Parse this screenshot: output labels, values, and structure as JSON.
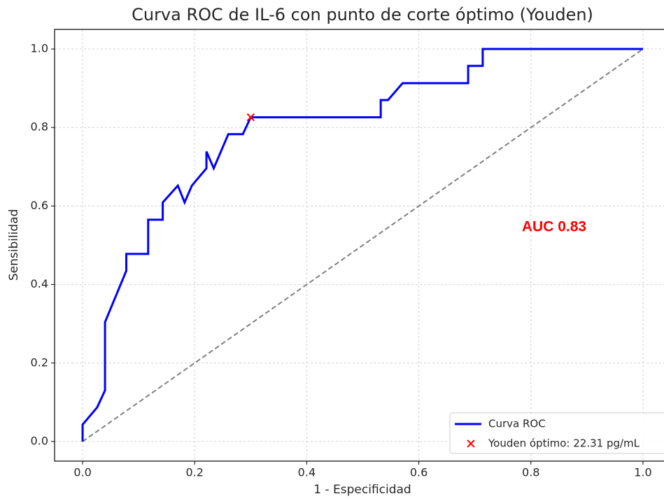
{
  "chart_data": {
    "type": "line",
    "title": "Curva ROC de IL-6 con punto de corte óptimo (Youden)",
    "x_label": "1 - Especificidad",
    "y_label": "Sensibilidad",
    "annotation": "AUC 0.83",
    "xlim": [
      -0.05,
      1.05
    ],
    "ylim": [
      -0.05,
      1.05
    ],
    "xticks": [
      {
        "value": 0,
        "label": "0.0"
      },
      {
        "value": 0.2,
        "label": "0.2"
      },
      {
        "value": 0.4,
        "label": "0.4"
      },
      {
        "value": 0.6,
        "label": "0.6"
      },
      {
        "value": 0.8,
        "label": "0.8"
      },
      {
        "value": 1,
        "label": "1.0"
      }
    ],
    "yticks": [
      {
        "value": 0,
        "label": "0.0"
      },
      {
        "value": 0.2,
        "label": "0.2"
      },
      {
        "value": 0.4,
        "label": "0.4"
      },
      {
        "value": 0.6,
        "label": "0.6"
      },
      {
        "value": 0.8,
        "label": "0.8"
      },
      {
        "value": 1,
        "label": "1.0"
      }
    ],
    "grid": true,
    "legend": "lower right",
    "series": [
      {
        "name": "Curva ROC",
        "color": "#0000ff",
        "style": "solid",
        "x": [
          0,
          0,
          0.026,
          0.04,
          0.04,
          0.078,
          0.078,
          0.117,
          0.117,
          0.143,
          0.143,
          0.17,
          0.182,
          0.195,
          0.221,
          0.221,
          0.234,
          0.26,
          0.286,
          0.3,
          0.532,
          0.532,
          0.545,
          0.571,
          0.688,
          0.688,
          0.714,
          0.714,
          1
        ],
        "values": [
          0,
          0.043,
          0.087,
          0.13,
          0.304,
          0.435,
          0.478,
          0.478,
          0.565,
          0.565,
          0.609,
          0.652,
          0.609,
          0.652,
          0.696,
          0.739,
          0.696,
          0.783,
          0.783,
          0.826,
          0.826,
          0.87,
          0.87,
          0.913,
          0.913,
          0.957,
          0.957,
          1,
          1
        ]
      },
      {
        "name": "Youden óptimo: 22.31 pg/mL",
        "color": "#ff0000",
        "style": "marker",
        "x": [
          0.3
        ],
        "values": [
          0.826
        ]
      },
      {
        "color": "#808080",
        "style": "dashed",
        "x": [
          0,
          1
        ],
        "values": [
          0,
          1
        ]
      }
    ]
  }
}
